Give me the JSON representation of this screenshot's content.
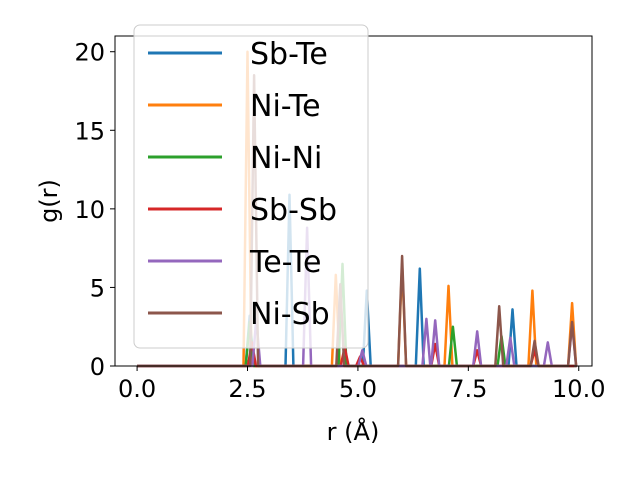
{
  "chart_data": {
    "type": "line",
    "title": "",
    "xlabel": "r (Å)",
    "ylabel": "g(r)",
    "xlim": [
      -0.5,
      10.3
    ],
    "ylim": [
      0,
      21
    ],
    "xticks": [
      "0.0",
      "2.5",
      "5.0",
      "7.5",
      "10.0"
    ],
    "yticks": [
      "0",
      "5",
      "10",
      "15",
      "20"
    ],
    "xtick_values": [
      0,
      2.5,
      5,
      7.5,
      10
    ],
    "ytick_values": [
      0,
      5,
      10,
      15,
      20
    ],
    "legend_position": "upper-left",
    "grid": false,
    "peak_half_width": 0.09,
    "x_start": 0.0,
    "x_end": 9.9,
    "series": [
      {
        "name": "Sb-Te",
        "color": "#1f77b4",
        "peaks": [
          [
            2.55,
            3.2
          ],
          [
            3.45,
            10.9
          ],
          [
            5.2,
            4.8
          ],
          [
            6.4,
            6.2
          ],
          [
            8.5,
            3.6
          ]
        ]
      },
      {
        "name": "Ni-Te",
        "color": "#ff7f0e",
        "peaks": [
          [
            2.5,
            20.0
          ],
          [
            4.5,
            5.8
          ],
          [
            6.0,
            6.5
          ],
          [
            7.05,
            5.1
          ],
          [
            8.95,
            4.8
          ],
          [
            9.85,
            4.0
          ]
        ]
      },
      {
        "name": "Ni-Ni",
        "color": "#2ca02c",
        "peaks": [
          [
            2.55,
            2.8
          ],
          [
            4.65,
            6.5
          ],
          [
            7.15,
            2.5
          ],
          [
            8.25,
            1.9
          ]
        ]
      },
      {
        "name": "Sb-Sb",
        "color": "#d62728",
        "peaks": [
          [
            2.6,
            1.5
          ],
          [
            4.7,
            1.2
          ],
          [
            5.05,
            0.6
          ],
          [
            6.75,
            1.4
          ],
          [
            7.7,
            1.0
          ],
          [
            9.0,
            1.0
          ]
        ]
      },
      {
        "name": "Te-Te",
        "color": "#9467bd",
        "peaks": [
          [
            2.7,
            3.0
          ],
          [
            3.85,
            8.8
          ],
          [
            5.1,
            1.0
          ],
          [
            6.55,
            3.0
          ],
          [
            6.75,
            2.9
          ],
          [
            7.7,
            2.2
          ],
          [
            8.45,
            1.8
          ],
          [
            9.3,
            1.5
          ],
          [
            9.85,
            2.7
          ]
        ]
      },
      {
        "name": "Ni-Sb",
        "color": "#8c564b",
        "peaks": [
          [
            2.65,
            18.5
          ],
          [
            4.6,
            5.2
          ],
          [
            6.0,
            7.0
          ],
          [
            8.2,
            3.8
          ],
          [
            9.0,
            1.6
          ],
          [
            9.85,
            2.8
          ]
        ]
      }
    ]
  }
}
